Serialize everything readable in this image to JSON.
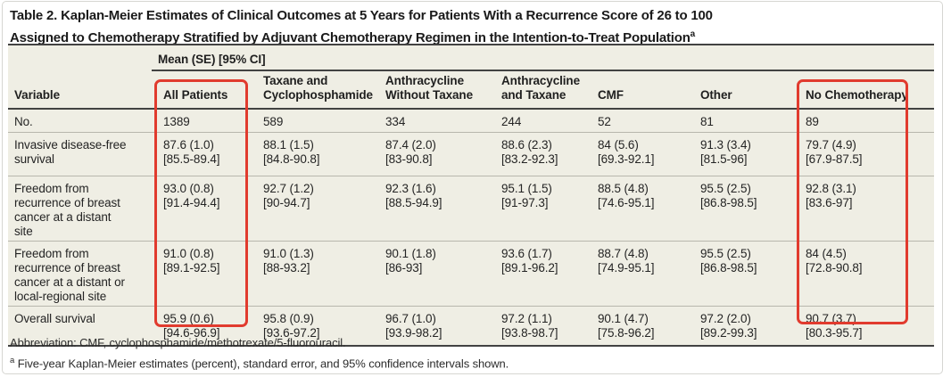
{
  "page": {
    "title_line1": "Table 2. Kaplan-Meier Estimates of Clinical Outcomes at 5 Years for Patients With a Recurrence Score of 26 to 100",
    "title_line2": "Assigned to Chemotherapy Stratified by Adjuvant Chemotherapy Regimen in the Intention-to-Treat Population",
    "title_superscript": "a"
  },
  "table": {
    "span_header": "Mean (SE) [95% CI]",
    "columns": [
      "Variable",
      "All Patients",
      "Taxane and Cyclophosphamide",
      "Anthracycline Without Taxane",
      "Anthracycline and Taxane",
      "CMF",
      "Other",
      "No Chemotherapy"
    ],
    "rows": [
      {
        "label": "No.",
        "cells": [
          {
            "est": "1389"
          },
          {
            "est": "589"
          },
          {
            "est": "334"
          },
          {
            "est": "244"
          },
          {
            "est": "52"
          },
          {
            "est": "81"
          },
          {
            "est": "89"
          }
        ]
      },
      {
        "label": "Invasive disease-free survival",
        "cells": [
          {
            "est": "87.6 (1.0)",
            "ci": "[85.5-89.4]"
          },
          {
            "est": "88.1 (1.5)",
            "ci": "[84.8-90.8]"
          },
          {
            "est": "87.4 (2.0)",
            "ci": "[83-90.8]"
          },
          {
            "est": "88.6 (2.3)",
            "ci": "[83.2-92.3]"
          },
          {
            "est": "84 (5.6)",
            "ci": "[69.3-92.1]"
          },
          {
            "est": "91.3 (3.4)",
            "ci": "[81.5-96]"
          },
          {
            "est": "79.7 (4.9)",
            "ci": "[67.9-87.5]"
          }
        ]
      },
      {
        "label": "Freedom from recurrence of breast cancer at a distant site",
        "cells": [
          {
            "est": "93.0 (0.8)",
            "ci": "[91.4-94.4]"
          },
          {
            "est": "92.7 (1.2)",
            "ci": "[90-94.7]"
          },
          {
            "est": "92.3 (1.6)",
            "ci": "[88.5-94.9]"
          },
          {
            "est": "95.1 (1.5)",
            "ci": "[91-97.3]"
          },
          {
            "est": "88.5 (4.8)",
            "ci": "[74.6-95.1]"
          },
          {
            "est": "95.5 (2.5)",
            "ci": "[86.8-98.5]"
          },
          {
            "est": "92.8 (3.1)",
            "ci": "[83.6-97]"
          }
        ]
      },
      {
        "label": "Freedom from recurrence of breast cancer at a distant or local-regional site",
        "cells": [
          {
            "est": "91.0 (0.8)",
            "ci": "[89.1-92.5]"
          },
          {
            "est": "91.0 (1.3)",
            "ci": "[88-93.2]"
          },
          {
            "est": "90.1 (1.8)",
            "ci": "[86-93]"
          },
          {
            "est": "93.6 (1.7)",
            "ci": "[89.1-96.2]"
          },
          {
            "est": "88.7 (4.8)",
            "ci": "[74.9-95.1]"
          },
          {
            "est": "95.5 (2.5)",
            "ci": "[86.8-98.5]"
          },
          {
            "est": "84 (4.5)",
            "ci": "[72.8-90.8]"
          }
        ]
      },
      {
        "label": "Overall survival",
        "cells": [
          {
            "est": "95.9 (0.6)",
            "ci": "[94.6-96.9]"
          },
          {
            "est": "95.8 (0.9)",
            "ci": "[93.6-97.2]"
          },
          {
            "est": "96.7 (1.0)",
            "ci": "[93.9-98.2]"
          },
          {
            "est": "97.2 (1.1)",
            "ci": "[93.8-98.7]"
          },
          {
            "est": "90.1 (4.7)",
            "ci": "[75.8-96.2]"
          },
          {
            "est": "97.2 (2.0)",
            "ci": "[89.2-99.3]"
          },
          {
            "est": "90.7 (3.7)",
            "ci": "[80.3-95.7]"
          }
        ]
      }
    ]
  },
  "highlights": {
    "color": "#e13b2e",
    "boxes": [
      {
        "target": "All Patients column"
      },
      {
        "target": "No Chemotherapy column"
      }
    ]
  },
  "footnotes": {
    "abbreviation": "Abbreviation: CMF, cyclophosphamide/methotrexate/5-fluorouracil.",
    "note_a_superscript": "a",
    "note_a": " Five-year Kaplan-Meier estimates (percent), standard error, and 95% confidence intervals shown."
  },
  "colors": {
    "table_background": "#efeee4",
    "rule_dark": "#424242",
    "row_separator": "#b8b7ad",
    "highlight_red": "#e13b2e"
  }
}
